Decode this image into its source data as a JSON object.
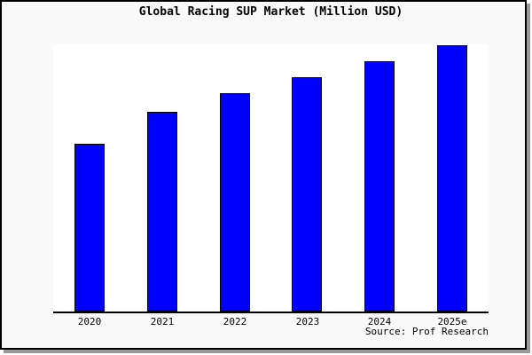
{
  "page": {
    "background_color": "#f9f9f9",
    "frame_border_color": "#000000",
    "shadow_color": "#999999",
    "plot_background_color": "#ffffff",
    "axis_line_color": "#000000"
  },
  "chart_data": {
    "type": "bar",
    "title": "Global Racing SUP Market (Million USD)",
    "categories": [
      "2020",
      "2021",
      "2022",
      "2023",
      "2024",
      "2025e"
    ],
    "values": [
      63,
      75,
      82,
      88,
      94,
      100
    ],
    "xlabel": "",
    "ylabel": "",
    "ylim": [
      0,
      100
    ],
    "grid": false,
    "legend": "none",
    "y_axis_visible": false,
    "bar_color": "#0000ff",
    "bar_border_color": "#000000"
  },
  "source": {
    "label": "Source: Prof Research"
  }
}
